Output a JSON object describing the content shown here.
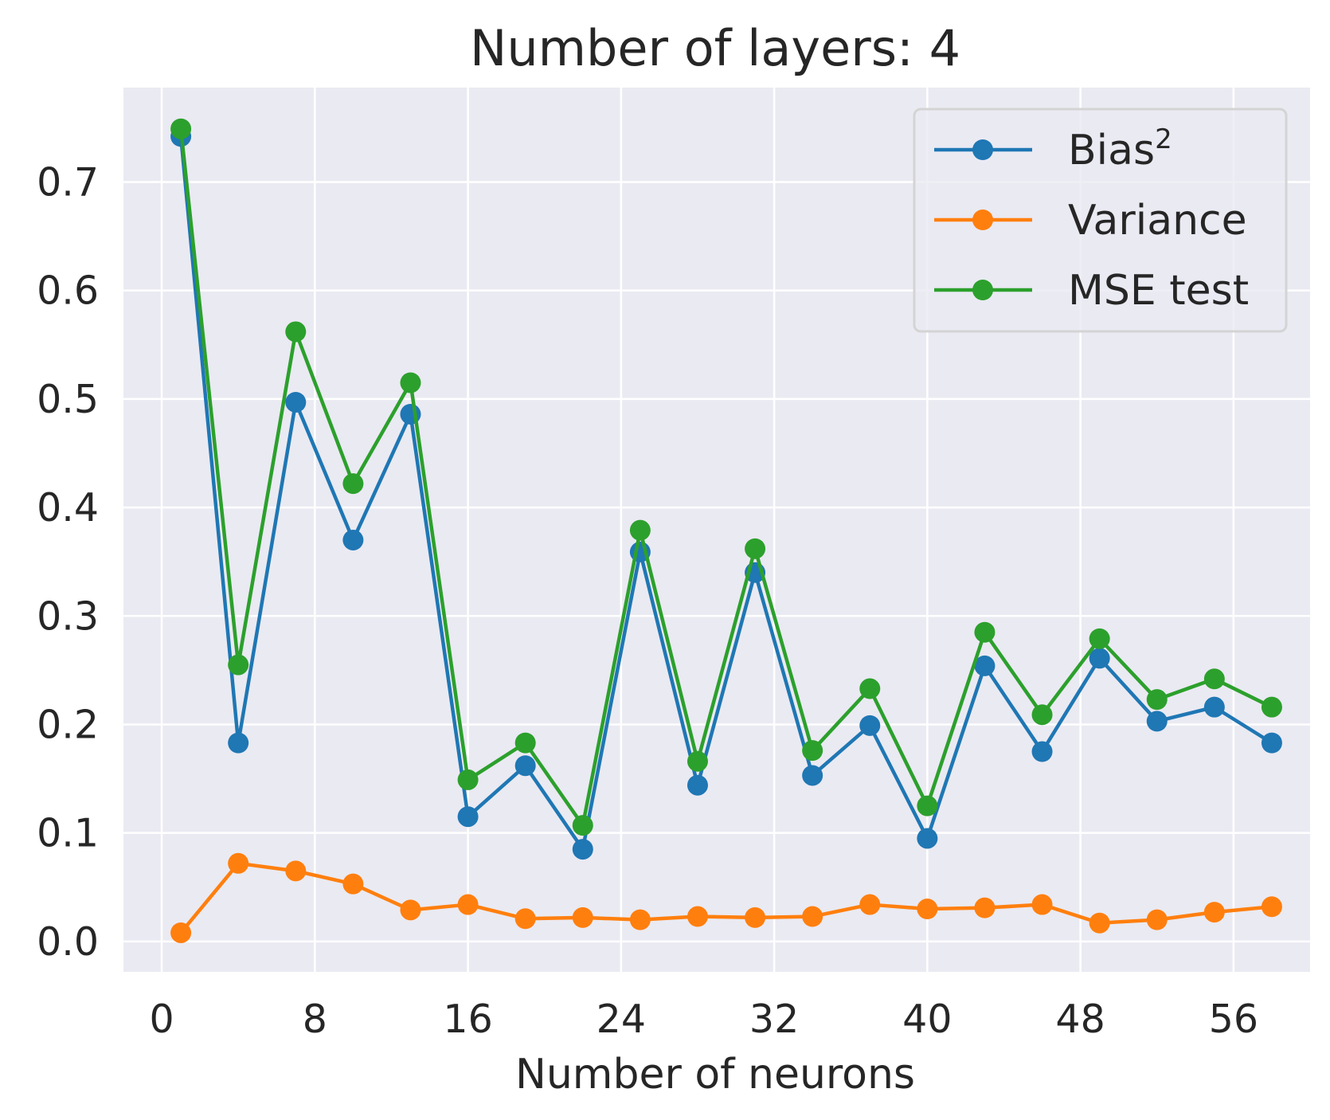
{
  "chart_data": {
    "type": "line",
    "title": "Number of layers: 4",
    "xlabel": "Number of neurons",
    "ylabel": "",
    "xlim": [
      -2,
      60
    ],
    "ylim": [
      -0.028,
      0.787
    ],
    "xticks": [
      0,
      8,
      16,
      24,
      32,
      40,
      48,
      56
    ],
    "yticks": [
      0.0,
      0.1,
      0.2,
      0.3,
      0.4,
      0.5,
      0.6,
      0.7
    ],
    "ytick_labels": [
      "0.0",
      "0.1",
      "0.2",
      "0.3",
      "0.4",
      "0.5",
      "0.6",
      "0.7"
    ],
    "grid": true,
    "background": "#eaeaf2",
    "legend_position": "top-right",
    "x": [
      1,
      4,
      7,
      10,
      13,
      16,
      19,
      22,
      25,
      28,
      31,
      34,
      37,
      40,
      43,
      46,
      49,
      52,
      55,
      58
    ],
    "series": [
      {
        "name": "Bias",
        "name_superscript": "2",
        "color": "#1f77b4",
        "values": [
          0.742,
          0.183,
          0.497,
          0.37,
          0.486,
          0.115,
          0.162,
          0.085,
          0.359,
          0.144,
          0.34,
          0.153,
          0.199,
          0.095,
          0.254,
          0.175,
          0.261,
          0.203,
          0.216,
          0.183
        ]
      },
      {
        "name": "Variance",
        "color": "#ff7f0e",
        "values": [
          0.008,
          0.072,
          0.065,
          0.053,
          0.029,
          0.034,
          0.021,
          0.022,
          0.02,
          0.023,
          0.022,
          0.023,
          0.034,
          0.03,
          0.031,
          0.034,
          0.017,
          0.02,
          0.027,
          0.032
        ]
      },
      {
        "name": "MSE test",
        "color": "#2ca02c",
        "values": [
          0.749,
          0.255,
          0.562,
          0.422,
          0.515,
          0.149,
          0.183,
          0.107,
          0.379,
          0.166,
          0.362,
          0.176,
          0.233,
          0.125,
          0.285,
          0.209,
          0.279,
          0.223,
          0.242,
          0.216
        ]
      }
    ]
  }
}
